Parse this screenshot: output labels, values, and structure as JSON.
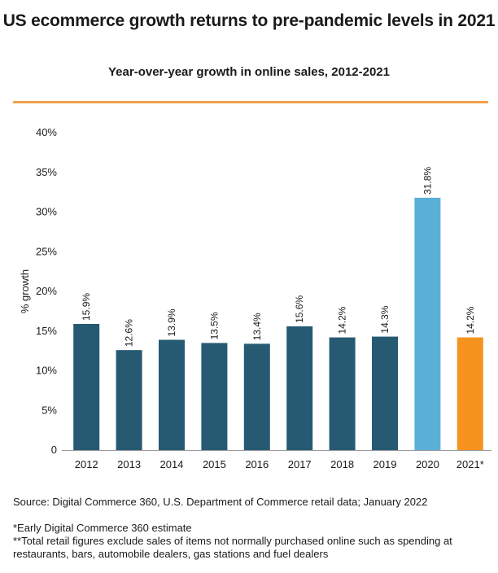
{
  "title": "US ecommerce growth returns to pre-pandemic levels in 2021",
  "chart_data": {
    "type": "bar",
    "subtitle": "Year-over-year growth in online sales, 2012-2021",
    "ylabel": "% growth",
    "xlabel": "",
    "ylim": [
      0,
      40
    ],
    "yticks": [
      0,
      5,
      10,
      15,
      20,
      25,
      30,
      35,
      40
    ],
    "ytick_labels": [
      "0",
      "5%",
      "10%",
      "15%",
      "20%",
      "25%",
      "30%",
      "35%",
      "40%"
    ],
    "categories": [
      "2012",
      "2013",
      "2014",
      "2015",
      "2016",
      "2017",
      "2018",
      "2019",
      "2020",
      "2021*"
    ],
    "values": [
      15.9,
      12.6,
      13.9,
      13.5,
      13.4,
      15.6,
      14.2,
      14.3,
      31.8,
      14.2
    ],
    "value_labels": [
      "15.9%",
      "12.6%",
      "13.9%",
      "13.5%",
      "13.4%",
      "15.6%",
      "14.2%",
      "14.3%",
      "31.8%",
      "14.2%"
    ],
    "bar_colors": [
      "#265a72",
      "#265a72",
      "#265a72",
      "#265a72",
      "#265a72",
      "#265a72",
      "#265a72",
      "#265a72",
      "#5aafd6",
      "#f6921e"
    ],
    "grid": false
  },
  "source": "Source: Digital Commerce 360, U.S. Department of Commerce retail data; January 2022",
  "notes": [
    "*Early Digital Commerce 360 estimate",
    "**Total retail figures exclude sales of items not normally purchased online such as spending at restaurants, bars, automobile dealers, gas stations and fuel dealers"
  ]
}
